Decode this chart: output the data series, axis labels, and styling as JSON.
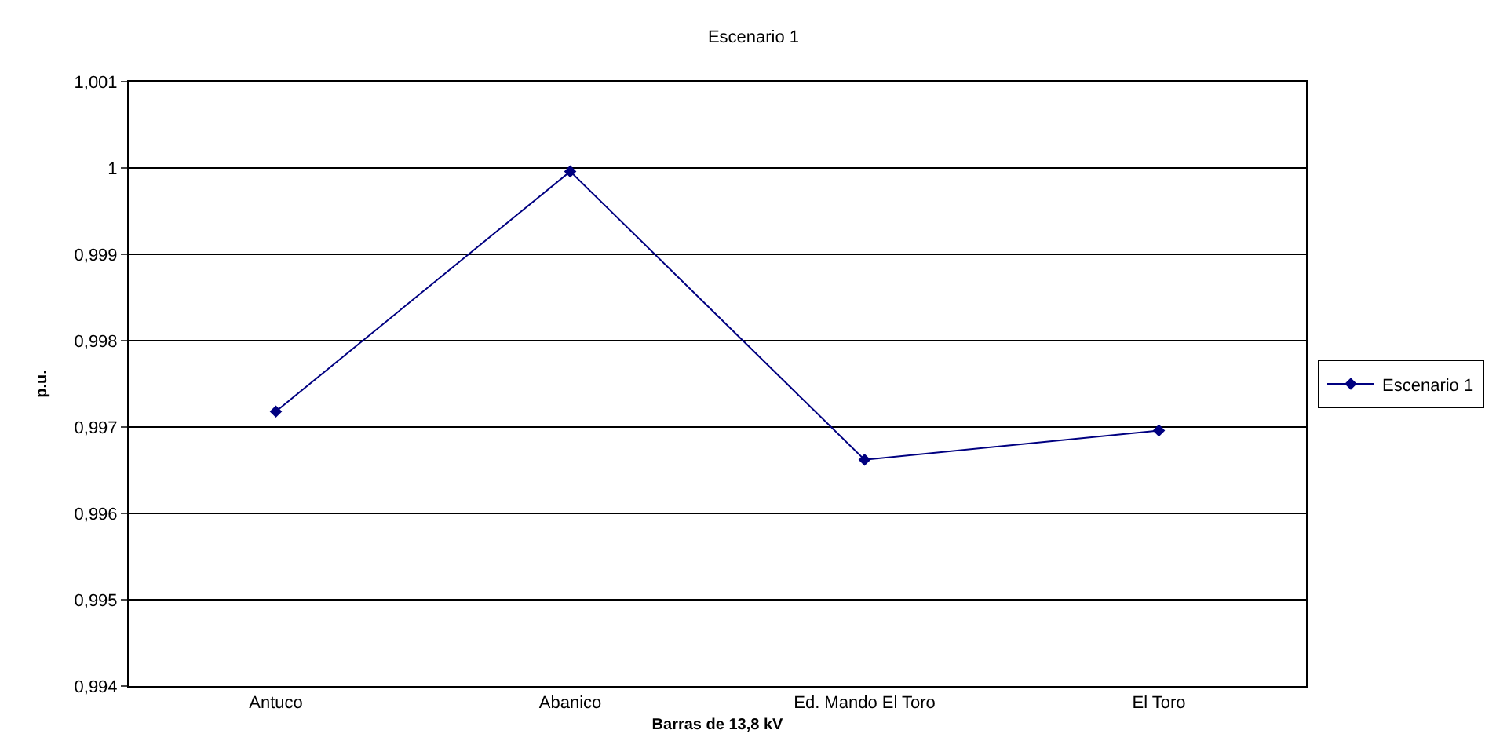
{
  "chart_data": {
    "type": "line",
    "title": "Escenario 1",
    "xlabel": "Barras de 13,8 kV",
    "ylabel": "p.u.",
    "categories": [
      "Antuco",
      "Abanico",
      "Ed. Mando El Toro",
      "El Toro"
    ],
    "series": [
      {
        "name": "Escenario 1",
        "color": "#000080",
        "values": [
          0.99718,
          0.99996,
          0.99662,
          0.99696
        ]
      }
    ],
    "ylim": [
      0.994,
      1.001
    ],
    "yticks": [
      {
        "value": 0.994,
        "label": "0,994"
      },
      {
        "value": 0.995,
        "label": "0,995"
      },
      {
        "value": 0.996,
        "label": "0,996"
      },
      {
        "value": 0.997,
        "label": "0,997"
      },
      {
        "value": 0.998,
        "label": "0,998"
      },
      {
        "value": 0.999,
        "label": "0,999"
      },
      {
        "value": 1,
        "label": "1"
      },
      {
        "value": 1.001,
        "label": "1,001"
      }
    ],
    "grid": "y",
    "legend": "right",
    "marker": "diamond",
    "line_style": "solid"
  }
}
